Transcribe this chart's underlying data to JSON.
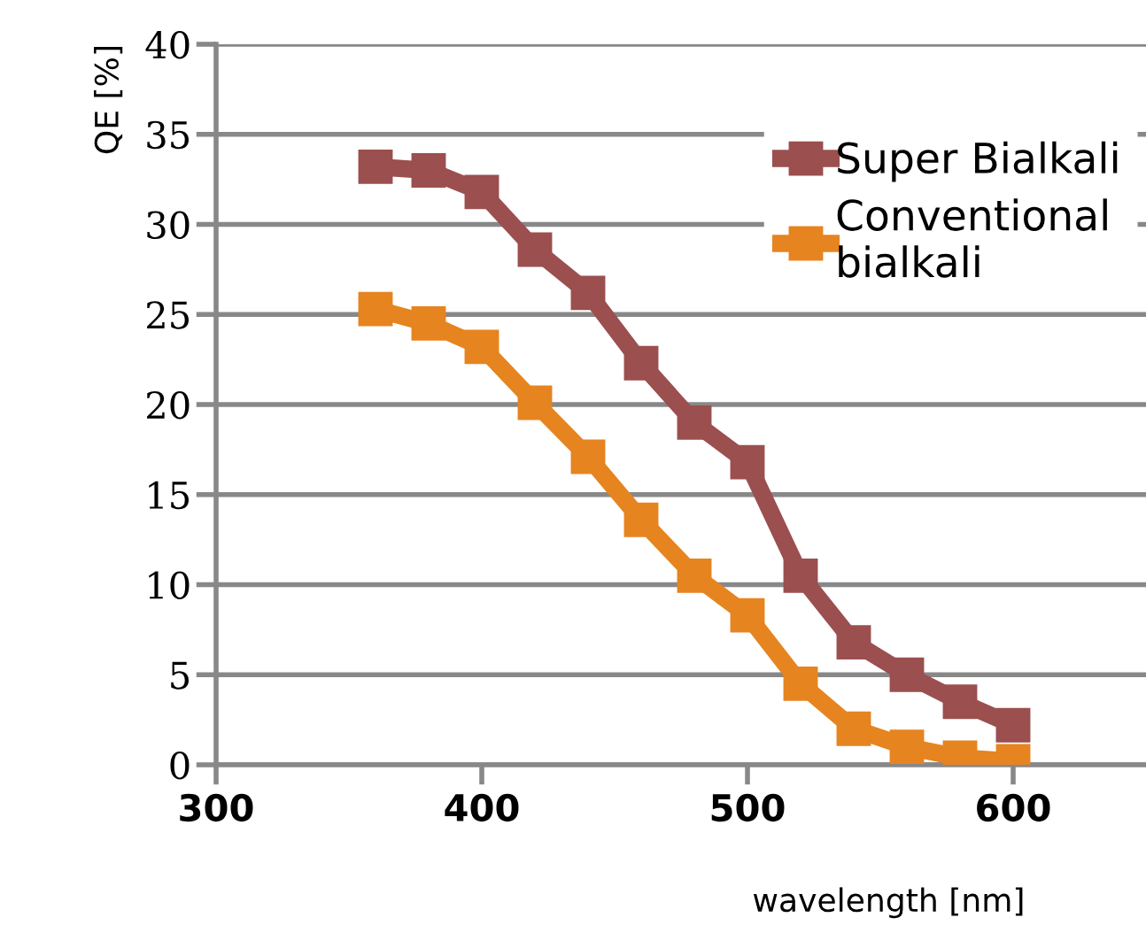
{
  "chart_data": {
    "type": "line",
    "xlabel": "wavelength [nm]",
    "ylabel": "QE [%]",
    "x": [
      360,
      380,
      400,
      420,
      440,
      460,
      480,
      500,
      520,
      540,
      560,
      580,
      600
    ],
    "series": [
      {
        "name": "Super Bialkali",
        "color": "#9b4f4f",
        "values": [
          33.2,
          33.0,
          31.8,
          28.6,
          26.2,
          22.3,
          19.0,
          16.8,
          10.5,
          6.8,
          5.0,
          3.5,
          2.2
        ]
      },
      {
        "name": "Conventional\nbialkali",
        "color": "#e68420",
        "values": [
          25.3,
          24.5,
          23.2,
          20.1,
          17.1,
          13.6,
          10.5,
          8.3,
          4.5,
          2.0,
          1.0,
          0.4,
          0.2
        ]
      }
    ],
    "xlim": [
      300,
      650
    ],
    "xticks": [
      300,
      400,
      500,
      600
    ],
    "ylim": [
      0,
      40
    ],
    "yticks": [
      0,
      5,
      10,
      15,
      20,
      25,
      30,
      35,
      40
    ],
    "grid": "y",
    "legend": "top right",
    "marker": "square",
    "line_style": "solid"
  }
}
